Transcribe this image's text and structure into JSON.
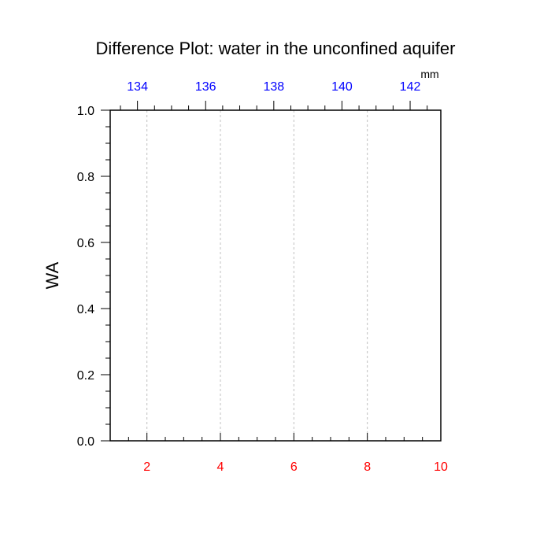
{
  "chart_data": {
    "type": "line",
    "title": "Difference Plot: water in the unconfined aquifer",
    "ylabel": "WA",
    "top_axis_unit": "mm",
    "x_bottom": {
      "range": [
        1,
        10
      ],
      "ticks": [
        2,
        4,
        6,
        8,
        10
      ],
      "tick_labels": [
        "2",
        "4",
        "6",
        "8",
        "10"
      ],
      "minor_step": 0.5,
      "color": "#ff0000"
    },
    "x_top": {
      "range": [
        133.2,
        142.9
      ],
      "ticks": [
        134,
        136,
        138,
        140,
        142
      ],
      "tick_labels": [
        "134",
        "136",
        "138",
        "140",
        "142"
      ],
      "minor_step": 0.5,
      "color": "#0000ff"
    },
    "y": {
      "range": [
        0,
        1
      ],
      "ticks": [
        0,
        0.2,
        0.4,
        0.6,
        0.8,
        1.0
      ],
      "tick_labels": [
        "0.0",
        "0.2",
        "0.4",
        "0.6",
        "0.8",
        "1.0"
      ],
      "minor_step": 0.05
    },
    "vertical_gridlines_at": [
      2,
      4,
      6,
      8
    ],
    "grid": true,
    "series": []
  }
}
